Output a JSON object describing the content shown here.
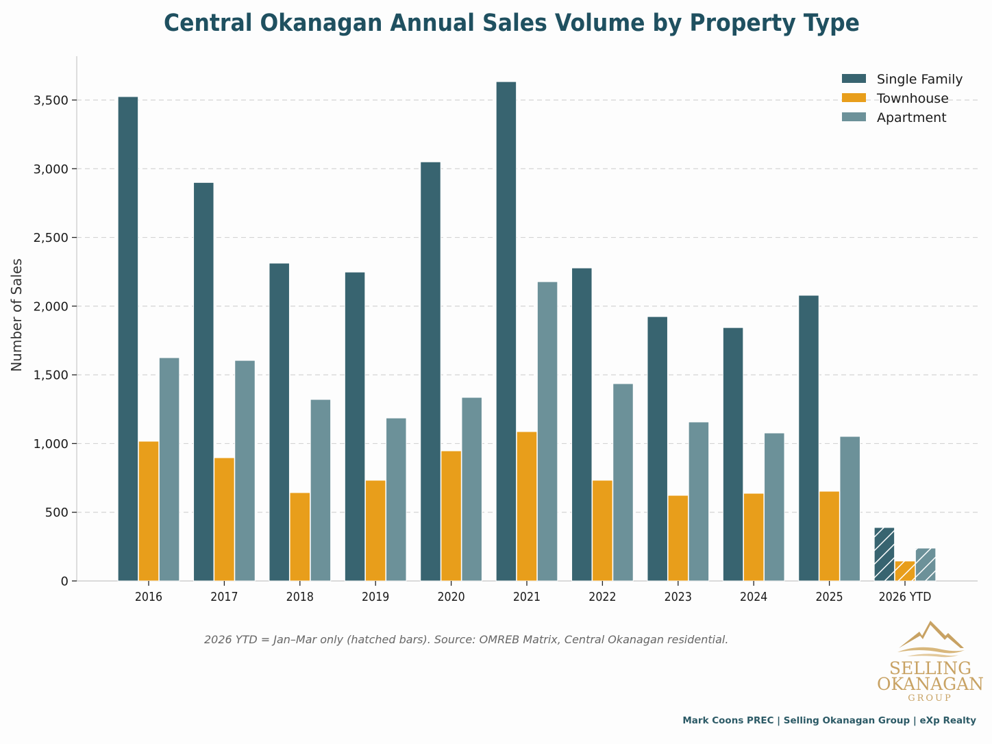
{
  "chart_data": {
    "type": "bar",
    "title": "Central Okanagan Annual Sales Volume by Property Type",
    "xlabel": "",
    "ylabel": "Number of Sales",
    "ylim": [
      0,
      3800
    ],
    "yticks": [
      0,
      500,
      1000,
      1500,
      2000,
      2500,
      3000,
      3500
    ],
    "ytick_labels": [
      "0",
      "500",
      "1,000",
      "1,500",
      "2,000",
      "2,500",
      "3,000",
      "3,500"
    ],
    "grid": "horizontal dashed",
    "legend_position": "top-right",
    "categories": [
      "2016",
      "2017",
      "2018",
      "2019",
      "2020",
      "2021",
      "2022",
      "2023",
      "2024",
      "2025",
      "2026 YTD"
    ],
    "hatched_categories": [
      "2026 YTD"
    ],
    "series": [
      {
        "name": "Single Family",
        "color": "#386470",
        "values": [
          3525,
          2900,
          2313,
          2248,
          3050,
          3634,
          2278,
          1924,
          1844,
          2079,
          389
        ]
      },
      {
        "name": "Townhouse",
        "color": "#e89e1b",
        "values": [
          1017,
          897,
          643,
          733,
          947,
          1087,
          733,
          623,
          638,
          653,
          145
        ]
      },
      {
        "name": "Apartment",
        "color": "#6c9199",
        "values": [
          1625,
          1605,
          1321,
          1186,
          1336,
          2178,
          1436,
          1157,
          1077,
          1052,
          239
        ]
      }
    ],
    "annotation": "2026 YTD = Jan–Mar only (hatched bars). Source: OMREB Matrix, Central Okanagan residential."
  },
  "footer": {
    "credit": "Mark Coons PREC | Selling Okanagan Group | eXp Realty",
    "logo": {
      "icon": "mountain-logo-icon",
      "line1": "SELLING",
      "line2": "OKANAGAN",
      "line3": "GROUP",
      "color": "#c8a263"
    }
  }
}
